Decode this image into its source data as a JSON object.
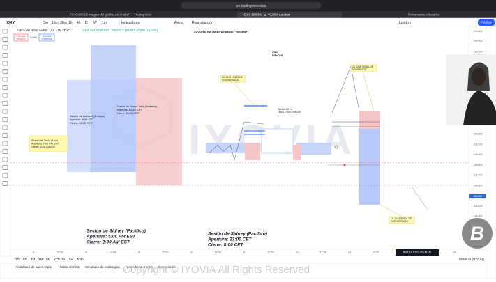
{
  "browser": {
    "tabs": [
      "FX:XAUUSD Imagen del gráfico de Anabel — TradingView",
      "DXY 108,881 ▲ +0,35% London",
      "Herramienta educativa"
    ],
    "url": "es.tradingview.com"
  },
  "toolbar": {
    "symbol": "DXY",
    "intervals": [
      "5m",
      "15m",
      "30m",
      "1h",
      "4h",
      "D",
      "W",
      "1m"
    ],
    "indicators": "Indicadores",
    "alert": "Alerta",
    "replay": "Reproducción",
    "session": "London",
    "publish": "Publicar"
  },
  "legend": {
    "name": "Índice del dólar de EE. UU. · 1h · TVC",
    "ohlc": "O108,841 H108,870 L108,753 C108,851 +0,020 (+0,02%)",
    "sell_price": "108,881",
    "sell": "VENDER",
    "spread": "0,040",
    "buy_price": "108,921",
    "buy": "COMPRAR"
  },
  "chart": {
    "title": "ACCIÓN DE PRECIO EN EL TIEMPO",
    "note": [
      "USD",
      "ÍNDICES"
    ],
    "watermark": "IYOVIA",
    "sessions": [
      {
        "lines": [
          "Sesión de Tokio (Asia)",
          "Apertura: 7:00 PM EST",
          "Cierre: 4:00 AM EST"
        ]
      },
      {
        "lines": [
          "Sesión de Londres (Europa)",
          "Apertura: 8:00 CET",
          "Cierre: 18:00 CET"
        ]
      },
      {
        "lines": [
          "Sesión de Nueva York (América)",
          "Apertura: 14:30 CET",
          "Cierre: 23:00 CET"
        ]
      },
      {
        "lines": [
          "Sesión de Sidney (Pacífico)",
          "Apertura: 5:00 PM EST",
          "Cierre: 2:00 AM EST"
        ]
      },
      {
        "lines": [
          "Sesión de Sidney (Pacífico)",
          "Apertura: 23:00 CET",
          "Cierre: 8:00 CET"
        ]
      }
    ],
    "callouts": [
      [
        "12: 14:00 LÍMITE DE",
        "POSTMERCADO"
      ],
      [
        "13: 14:00 SEÑAL DE",
        "MOVIMIENTO"
      ],
      [
        "17: 15:15 SEÑAL DE",
        "POSTMERCADO"
      ],
      [
        "SALIDA DE LA",
        "LÍNEA (TRAS RANGO)"
      ]
    ],
    "y_axis": [
      "109,800",
      "109,700",
      "109,600",
      "109,500",
      "109,400",
      "109,300",
      "109,200",
      "109,100",
      "109,000",
      "108,900",
      "108,800",
      "108,700",
      "108,600",
      "108,500",
      "108,400",
      "108,300",
      "108,200",
      "108,100",
      "108,000",
      "107,900",
      "107,800",
      "107,700"
    ],
    "x_axis": [
      "3",
      "12:00",
      "4",
      "12:00",
      "5",
      "12:00",
      "6",
      "12:00",
      "9",
      "12:00",
      "10",
      "12:00",
      "13",
      "12:00",
      "14",
      "12:00",
      "15"
    ],
    "price_tags": [
      "108,881",
      "108,851",
      "108,050"
    ],
    "date_badge": "mar 14 Ene '25  09:00",
    "clock": "09:55:42 (UTC+1)"
  },
  "ranges": [
    "1D",
    "5D",
    "1M",
    "3M",
    "6M",
    "YTD",
    "1A",
    "5A",
    "Todo"
  ],
  "bottom_tabs": [
    "Analizador de pares cripto",
    "Editor de Pine",
    "Simulador de estrategias",
    "Reproductor trading",
    "Operaciones"
  ],
  "copyright": "Copyright © IYOVIA All Rights Reserved"
}
